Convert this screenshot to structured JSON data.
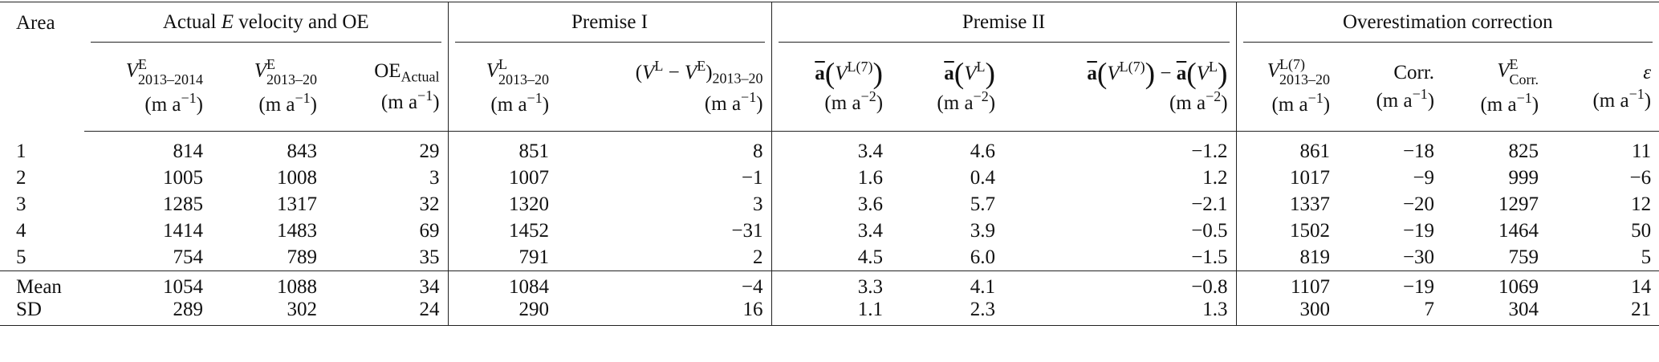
{
  "table": {
    "area_header": "Area",
    "groups": [
      {
        "title": [
          {
            "t": "Actual "
          },
          {
            "t": "E",
            "i": true
          },
          {
            "t": " velocity and OE"
          }
        ],
        "columns": [
          {
            "label": [
              {
                "t": "V",
                "i": true
              },
              {
                "sup": "E",
                "sub": "2013–2014"
              }
            ],
            "unit": {
              "pre": "(m a",
              "sup": "−1",
              "post": ")"
            }
          },
          {
            "label": [
              {
                "t": "V",
                "i": true
              },
              {
                "sup": "E",
                "sub": "2013–20"
              }
            ],
            "unit": {
              "pre": "(m a",
              "sup": "−1",
              "post": ")"
            }
          },
          {
            "label": [
              {
                "t": "OE"
              },
              {
                "sub": "Actual"
              }
            ],
            "unit": {
              "pre": "(m a",
              "sup": "−1",
              "post": ")"
            }
          }
        ]
      },
      {
        "title": [
          {
            "t": "Premise I"
          }
        ],
        "columns": [
          {
            "label": [
              {
                "t": "V",
                "i": true
              },
              {
                "sup": "L",
                "sub": "2013–20"
              }
            ],
            "unit": {
              "pre": "(m a",
              "sup": "−1",
              "post": ")"
            }
          },
          {
            "label": [
              {
                "t": "("
              },
              {
                "t": "V",
                "i": true
              },
              {
                "sup": "L"
              },
              {
                "t": " − "
              },
              {
                "t": "V",
                "i": true
              },
              {
                "sup": "E"
              },
              {
                "t": ")"
              },
              {
                "sub": "2013–20"
              }
            ],
            "unit": {
              "pre": "(m a",
              "sup": "−1",
              "post": ")"
            }
          }
        ]
      },
      {
        "title": [
          {
            "t": "Premise II"
          }
        ],
        "columns": [
          {
            "label": [
              {
                "t": "a",
                "b": true,
                "over": true
              },
              {
                "t": "(",
                "big": true
              },
              {
                "t": "V",
                "i": true
              },
              {
                "sup": "L(7)"
              },
              {
                "t": ")",
                "big": true
              }
            ],
            "unit": {
              "pre": "(m a",
              "sup": "−2",
              "post": ")"
            }
          },
          {
            "label": [
              {
                "t": "a",
                "b": true,
                "over": true
              },
              {
                "t": "(",
                "big": true
              },
              {
                "t": "V",
                "i": true
              },
              {
                "sup": "L"
              },
              {
                "t": ")",
                "big": true
              }
            ],
            "unit": {
              "pre": "(m a",
              "sup": "−2",
              "post": ")"
            }
          },
          {
            "label": [
              {
                "t": "a",
                "b": true,
                "over": true
              },
              {
                "t": "(",
                "big": true
              },
              {
                "t": "V",
                "i": true
              },
              {
                "sup": "L(7)"
              },
              {
                "t": ")",
                "big": true
              },
              {
                "t": " − "
              },
              {
                "t": "a",
                "b": true,
                "over": true
              },
              {
                "t": "(",
                "big": true
              },
              {
                "t": "V",
                "i": true
              },
              {
                "sup": "L"
              },
              {
                "t": ")",
                "big": true
              }
            ],
            "unit": {
              "pre": "(m a",
              "sup": "−2",
              "post": ")"
            }
          }
        ]
      },
      {
        "title": [
          {
            "t": "Overestimation correction"
          }
        ],
        "columns": [
          {
            "label": [
              {
                "t": "V",
                "i": true
              },
              {
                "sup": "L(7)",
                "sub": "2013–20"
              }
            ],
            "unit": {
              "pre": "(m a",
              "sup": "−1",
              "post": ")"
            }
          },
          {
            "label": [
              {
                "t": "Corr."
              }
            ],
            "unit": {
              "pre": "(m a",
              "sup": "−1",
              "post": ")"
            }
          },
          {
            "label": [
              {
                "t": "V",
                "i": true
              },
              {
                "sup": "E",
                "sub": "Corr."
              }
            ],
            "unit": {
              "pre": "(m a",
              "sup": "−1",
              "post": ")"
            }
          },
          {
            "label": [
              {
                "t": "ε",
                "i": true
              }
            ],
            "unit": {
              "pre": "(m a",
              "sup": "−1",
              "post": ")"
            }
          }
        ]
      }
    ],
    "rows": [
      [
        "1",
        "814",
        "843",
        "29",
        "851",
        "8",
        "3.4",
        "4.6",
        "−1.2",
        "861",
        "−18",
        "825",
        "11"
      ],
      [
        "2",
        "1005",
        "1008",
        "3",
        "1007",
        "−1",
        "1.6",
        "0.4",
        "1.2",
        "1017",
        "−9",
        "999",
        "−6"
      ],
      [
        "3",
        "1285",
        "1317",
        "32",
        "1320",
        "3",
        "3.6",
        "5.7",
        "−2.1",
        "1337",
        "−20",
        "1297",
        "12"
      ],
      [
        "4",
        "1414",
        "1483",
        "69",
        "1452",
        "−31",
        "3.4",
        "3.9",
        "−0.5",
        "1502",
        "−19",
        "1464",
        "50"
      ],
      [
        "5",
        "754",
        "789",
        "35",
        "791",
        "2",
        "4.5",
        "6.0",
        "−1.5",
        "819",
        "−30",
        "759",
        "5"
      ]
    ],
    "summary": [
      [
        "Mean",
        "1054",
        "1088",
        "34",
        "1084",
        "−4",
        "3.3",
        "4.1",
        "−0.8",
        "1107",
        "−19",
        "1069",
        "14"
      ],
      [
        "SD",
        "289",
        "302",
        "24",
        "290",
        "16",
        "1.1",
        "2.3",
        "1.3",
        "300",
        "7",
        "304",
        "21"
      ]
    ]
  }
}
